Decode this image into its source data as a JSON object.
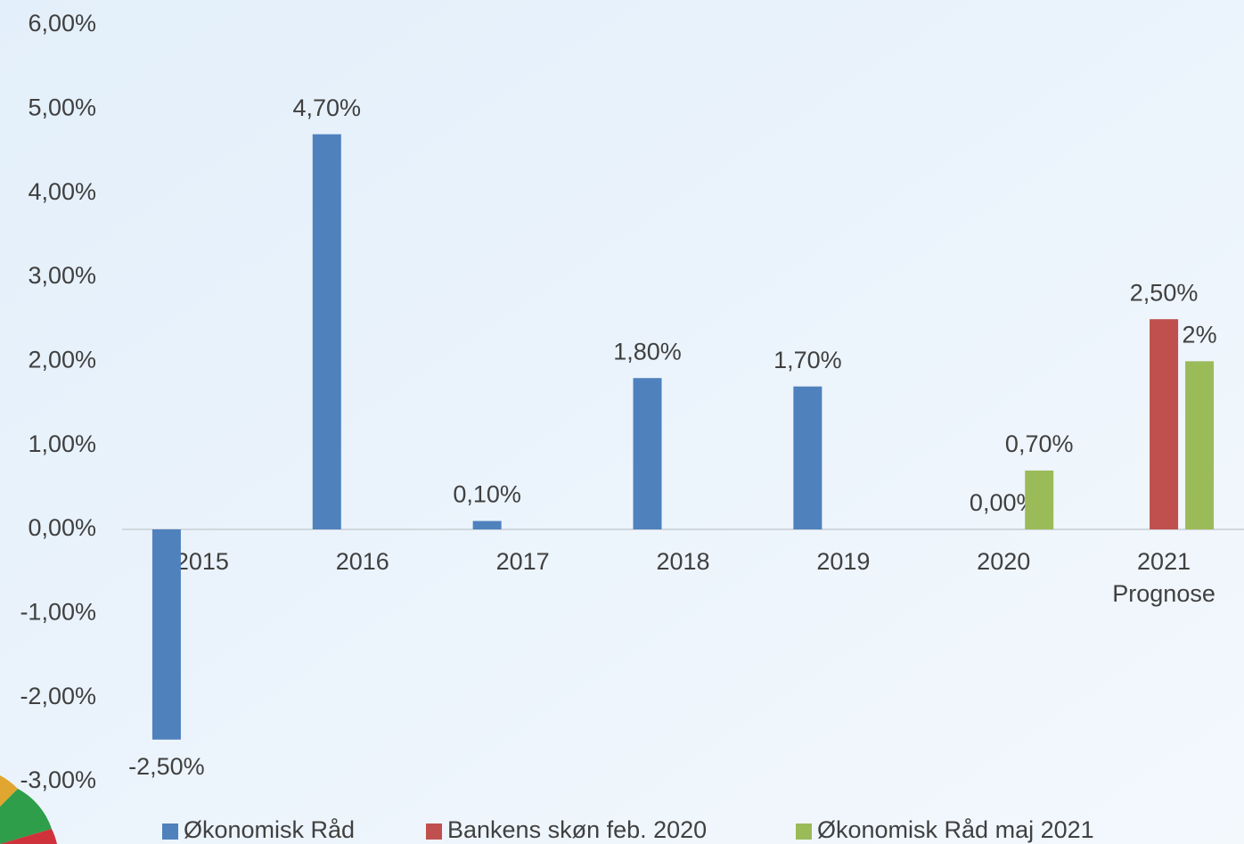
{
  "chart_data": {
    "type": "bar",
    "categories": [
      "2015",
      "2016",
      "2017",
      "2018",
      "2019",
      "2020",
      "2021\nPrognose"
    ],
    "series": [
      {
        "name": "Økonomisk Råd",
        "color": "#4f81bd",
        "values": [
          -2.5,
          4.7,
          0.1,
          1.8,
          1.7,
          null,
          null
        ],
        "value_labels": [
          "-2,50%",
          "4,70%",
          "0,10%",
          "1,80%",
          "1,70%",
          null,
          null
        ]
      },
      {
        "name": "Bankens skøn feb. 2020",
        "color": "#c0504d",
        "values": [
          null,
          null,
          null,
          null,
          null,
          0,
          2.5
        ],
        "value_labels": [
          null,
          null,
          null,
          null,
          null,
          "0,00%",
          "2,50%"
        ]
      },
      {
        "name": "Økonomisk Råd maj 2021",
        "color": "#9bbb59",
        "values": [
          null,
          null,
          null,
          null,
          null,
          0.7,
          2
        ],
        "value_labels": [
          null,
          null,
          null,
          null,
          null,
          "0,70%",
          "2%"
        ]
      }
    ],
    "ylim": [
      -3,
      6
    ],
    "yticks": [
      {
        "value": -3,
        "label": "-3,00%"
      },
      {
        "value": -2,
        "label": "-2,00%"
      },
      {
        "value": -1,
        "label": "-1,00%"
      },
      {
        "value": 0,
        "label": "0,00%"
      },
      {
        "value": 1,
        "label": "1,00%"
      },
      {
        "value": 2,
        "label": "2,00%"
      },
      {
        "value": 3,
        "label": "3,00%"
      },
      {
        "value": 4,
        "label": "4,00%"
      },
      {
        "value": 5,
        "label": "5,00%"
      },
      {
        "value": 6,
        "label": "6,00%"
      }
    ],
    "legend": "bottom"
  }
}
